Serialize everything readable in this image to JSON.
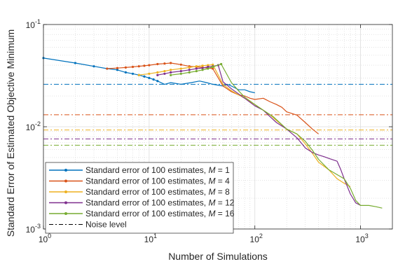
{
  "chart_data": {
    "type": "line",
    "xscale": "log",
    "yscale": "log",
    "xlim": [
      1,
      2000
    ],
    "ylim": [
      0.001,
      0.1
    ],
    "grid": true,
    "minor_grid": true,
    "xlabel": "Number of Simulations",
    "ylabel": "Standard Error of Estimated Objective Minimum",
    "x_ticks": [
      1,
      10,
      100,
      1000
    ],
    "x_tick_labels": [
      {
        "base": "10",
        "exp": "0"
      },
      {
        "base": "10",
        "exp": "1"
      },
      {
        "base": "10",
        "exp": "2"
      },
      {
        "base": "10",
        "exp": "3"
      }
    ],
    "y_ticks": [
      0.001,
      0.01,
      0.1
    ],
    "y_tick_labels": [
      {
        "base": "10",
        "exp": "-3"
      },
      {
        "base": "10",
        "exp": "-2"
      },
      {
        "base": "10",
        "exp": "-1"
      }
    ],
    "legend_position": "bottom-left",
    "legend": [
      {
        "text": "Standard error of 100 estimates, ",
        "var": "M",
        "value": " = 1",
        "color": "#0072BD",
        "style": "marker-line"
      },
      {
        "text": "Standard error of 100 estimates, ",
        "var": "M",
        "value": " = 4",
        "color": "#D95319",
        "style": "marker-line"
      },
      {
        "text": "Standard error of 100 estimates, ",
        "var": "M",
        "value": " = 8",
        "color": "#EDB120",
        "style": "marker-line"
      },
      {
        "text": "Standard error of 100 estimates, ",
        "var": "M",
        "value": " = 12",
        "color": "#7E2F8E",
        "style": "marker-line"
      },
      {
        "text": "Standard error of 100 estimates, ",
        "var": "M",
        "value": " = 16",
        "color": "#77AC30",
        "style": "marker-line"
      },
      {
        "text": "Noise level",
        "var": "",
        "value": "",
        "color": "#000000",
        "style": "dash-dot"
      }
    ],
    "noise_levels": [
      {
        "M": 1,
        "color": "#0072BD",
        "y": 0.026
      },
      {
        "M": 4,
        "color": "#D95319",
        "y": 0.0131
      },
      {
        "M": 8,
        "color": "#EDB120",
        "y": 0.0093
      },
      {
        "M": 12,
        "color": "#7E2F8E",
        "y": 0.0076
      },
      {
        "M": 16,
        "color": "#77AC30",
        "y": 0.0066
      }
    ],
    "series": [
      {
        "M": 1,
        "color": "#0072BD",
        "marker_until": 12,
        "x": [
          1,
          2,
          3,
          4,
          5,
          6,
          7,
          8,
          9,
          10,
          11,
          12,
          14,
          16,
          20,
          25,
          30,
          35,
          40,
          45,
          50,
          55,
          60,
          65,
          70,
          80,
          90,
          100
        ],
        "y": [
          0.047,
          0.042,
          0.039,
          0.037,
          0.036,
          0.034,
          0.033,
          0.032,
          0.031,
          0.03,
          0.029,
          0.028,
          0.026,
          0.027,
          0.026,
          0.027,
          0.028,
          0.027,
          0.026,
          0.0255,
          0.025,
          0.026,
          0.025,
          0.024,
          0.023,
          0.023,
          0.022,
          0.0215
        ]
      },
      {
        "M": 4,
        "color": "#D95319",
        "marker_until": 40,
        "x": [
          4,
          5,
          6,
          7,
          8,
          9,
          10,
          12,
          14,
          16,
          20,
          24,
          28,
          32,
          36,
          40,
          50,
          60,
          70,
          80,
          90,
          100,
          120,
          140,
          160,
          180,
          200,
          250,
          300,
          350,
          400
        ],
        "y": [
          0.037,
          0.0375,
          0.038,
          0.0385,
          0.039,
          0.0395,
          0.04,
          0.041,
          0.0415,
          0.042,
          0.0405,
          0.039,
          0.0385,
          0.038,
          0.0375,
          0.037,
          0.025,
          0.022,
          0.0205,
          0.02,
          0.019,
          0.0185,
          0.019,
          0.0175,
          0.0165,
          0.0155,
          0.014,
          0.013,
          0.011,
          0.0095,
          0.0085
        ]
      },
      {
        "M": 8,
        "color": "#EDB120",
        "marker_until": 40,
        "x": [
          8,
          10,
          12,
          14,
          16,
          20,
          24,
          28,
          32,
          36,
          40,
          50,
          60,
          80,
          100,
          120,
          140,
          160,
          200,
          250,
          300,
          350,
          400,
          500,
          600,
          700,
          800
        ],
        "y": [
          0.032,
          0.033,
          0.034,
          0.035,
          0.036,
          0.037,
          0.038,
          0.039,
          0.0395,
          0.04,
          0.0405,
          0.026,
          0.0225,
          0.019,
          0.0165,
          0.0145,
          0.013,
          0.0115,
          0.0095,
          0.0085,
          0.0068,
          0.0055,
          0.0045,
          0.0038,
          0.0031,
          0.0028,
          0.0026
        ]
      },
      {
        "M": 12,
        "color": "#7E2F8E",
        "marker_until": 45,
        "x": [
          12,
          14,
          16,
          20,
          24,
          28,
          32,
          36,
          40,
          45,
          50,
          60,
          80,
          100,
          120,
          140,
          160,
          200,
          250,
          300,
          350,
          400,
          450,
          500,
          600,
          650,
          700,
          800,
          900,
          1000
        ],
        "y": [
          0.032,
          0.033,
          0.034,
          0.035,
          0.036,
          0.037,
          0.0375,
          0.0385,
          0.039,
          0.04,
          0.0275,
          0.0235,
          0.019,
          0.016,
          0.0145,
          0.0125,
          0.011,
          0.0095,
          0.0078,
          0.0062,
          0.0056,
          0.0053,
          0.0051,
          0.0049,
          0.0046,
          0.0038,
          0.0031,
          0.0022,
          0.0018,
          0.0017
        ]
      },
      {
        "M": 16,
        "color": "#77AC30",
        "marker_until": 48,
        "x": [
          16,
          20,
          24,
          28,
          32,
          36,
          40,
          48,
          60,
          70,
          80,
          100,
          120,
          150,
          180,
          200,
          250,
          300,
          350,
          400,
          500,
          600,
          700,
          800,
          900,
          1000,
          1200,
          1400,
          1600
        ],
        "y": [
          0.032,
          0.033,
          0.034,
          0.035,
          0.036,
          0.037,
          0.0385,
          0.041,
          0.027,
          0.0225,
          0.0195,
          0.0165,
          0.0145,
          0.0125,
          0.0105,
          0.0095,
          0.0085,
          0.0072,
          0.0059,
          0.0048,
          0.0038,
          0.0034,
          0.0031,
          0.0025,
          0.0019,
          0.0017,
          0.0017,
          0.00165,
          0.0016
        ]
      }
    ]
  }
}
